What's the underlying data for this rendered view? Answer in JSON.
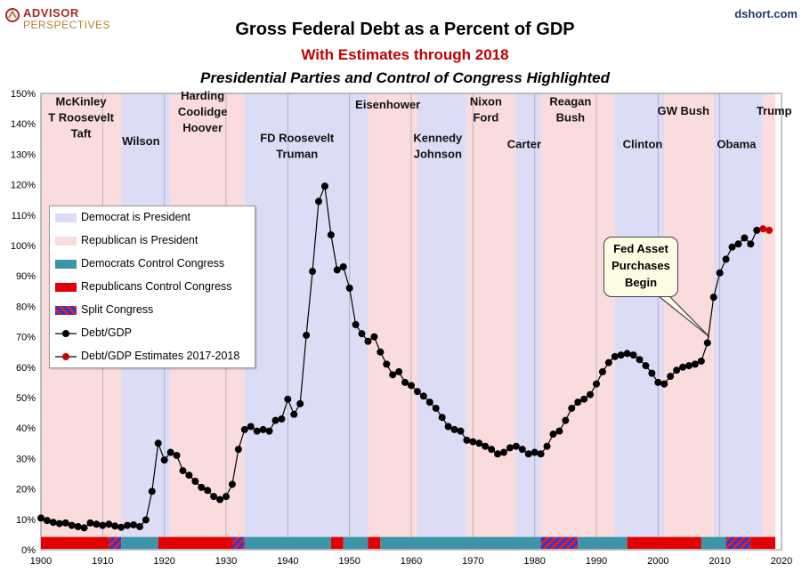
{
  "header": {
    "logo_top": "ADVISOR",
    "logo_bottom": "PERSPECTIVES",
    "source": "dshort.com"
  },
  "colors": {
    "democrat_president": "#dcdcf6",
    "republican_president": "#fadcdc",
    "democrat_congress": "#3c95a6",
    "republican_congress": "#e30000",
    "split_a": "#2b36d9",
    "split_b": "#e32020",
    "debt_line": "#000000",
    "estimate_marker": "#d10000"
  },
  "chart_data": {
    "type": "line",
    "title": "Gross Federal Debt as a Percent of GDP",
    "subtitle": "With Estimates through 2018",
    "subtitle2": "Presidential Parties and Control of Congress Highlighted",
    "xlim": [
      1900,
      2020
    ],
    "ylim": [
      0,
      150
    ],
    "xticks": [
      1900,
      1910,
      1920,
      1930,
      1940,
      1950,
      1960,
      1970,
      1980,
      1990,
      2000,
      2010,
      2020
    ],
    "yticks": [
      0,
      10,
      20,
      30,
      40,
      50,
      60,
      70,
      80,
      90,
      100,
      110,
      120,
      130,
      140,
      150
    ],
    "ytick_labels": [
      "0%",
      "10%",
      "20%",
      "30%",
      "40%",
      "50%",
      "60%",
      "70%",
      "80%",
      "90%",
      "100%",
      "110%",
      "120%",
      "130%",
      "140%",
      "150%"
    ],
    "grid": "vertical lines at decade ticks",
    "legend_position": "center-left",
    "legend": [
      {
        "label": "Democrat is President",
        "kind": "dem_pres"
      },
      {
        "label": "Republican is President",
        "kind": "rep_pres"
      },
      {
        "label": "Democrats Control Congress",
        "kind": "dem_cong"
      },
      {
        "label": "Republicans Control Congress",
        "kind": "rep_cong"
      },
      {
        "label": "Split Congress",
        "kind": "split"
      },
      {
        "label": "Debt/GDP",
        "kind": "line"
      },
      {
        "label": "Debt/GDP Estimates 2017-2018",
        "kind": "est"
      }
    ],
    "president_periods": [
      {
        "start": 1900,
        "end": 1913,
        "party": "R",
        "label": [
          "McKinley",
          "T Roosevelt",
          "Taft"
        ],
        "label_x": 1906.5,
        "label_y": 146
      },
      {
        "start": 1913,
        "end": 1921,
        "party": "D",
        "label": [
          "Wilson"
        ],
        "label_x": 1916.2,
        "label_y": 133
      },
      {
        "start": 1921,
        "end": 1933,
        "party": "R",
        "label": [
          "Harding",
          "Coolidge",
          "Hoover"
        ],
        "label_x": 1926.2,
        "label_y": 148
      },
      {
        "start": 1933,
        "end": 1953,
        "party": "D",
        "label": [
          "FD Roosevelt",
          "Truman"
        ],
        "label_x": 1941.5,
        "label_y": 134
      },
      {
        "start": 1953,
        "end": 1961,
        "party": "R",
        "label": [
          "Eisenhower"
        ],
        "label_x": 1956.2,
        "label_y": 145
      },
      {
        "start": 1961,
        "end": 1969,
        "party": "D",
        "label": [
          "Kennedy",
          "Johnson"
        ],
        "label_x": 1964.3,
        "label_y": 134
      },
      {
        "start": 1969,
        "end": 1977,
        "party": "R",
        "label": [
          "Nixon",
          "Ford"
        ],
        "label_x": 1972.1,
        "label_y": 146
      },
      {
        "start": 1977,
        "end": 1981,
        "party": "D",
        "label": [
          "Carter"
        ],
        "label_x": 1978.3,
        "label_y": 132
      },
      {
        "start": 1981,
        "end": 1993,
        "party": "R",
        "label": [
          "Reagan",
          "Bush"
        ],
        "label_x": 1985.8,
        "label_y": 146
      },
      {
        "start": 1993,
        "end": 2001,
        "party": "D",
        "label": [
          "Clinton"
        ],
        "label_x": 1997.5,
        "label_y": 132
      },
      {
        "start": 2001,
        "end": 2009,
        "party": "R",
        "label": [
          "GW Bush"
        ],
        "label_x": 2004.1,
        "label_y": 143
      },
      {
        "start": 2009,
        "end": 2017,
        "party": "D",
        "label": [
          "Obama"
        ],
        "label_x": 2012.7,
        "label_y": 132
      },
      {
        "start": 2017,
        "end": 2019,
        "party": "R",
        "label": [
          "Trump"
        ],
        "label_x": 2018.8,
        "label_y": 143
      }
    ],
    "congress_periods": [
      {
        "start": 1900,
        "end": 1911,
        "party": "R"
      },
      {
        "start": 1911,
        "end": 1913,
        "party": "S"
      },
      {
        "start": 1913,
        "end": 1919,
        "party": "D"
      },
      {
        "start": 1919,
        "end": 1931,
        "party": "R"
      },
      {
        "start": 1931,
        "end": 1933,
        "party": "S"
      },
      {
        "start": 1933,
        "end": 1947,
        "party": "D"
      },
      {
        "start": 1947,
        "end": 1949,
        "party": "R"
      },
      {
        "start": 1949,
        "end": 1953,
        "party": "D"
      },
      {
        "start": 1953,
        "end": 1955,
        "party": "R"
      },
      {
        "start": 1955,
        "end": 1981,
        "party": "D"
      },
      {
        "start": 1981,
        "end": 1987,
        "party": "S"
      },
      {
        "start": 1987,
        "end": 1995,
        "party": "D"
      },
      {
        "start": 1995,
        "end": 2007,
        "party": "R"
      },
      {
        "start": 2007,
        "end": 2011,
        "party": "D"
      },
      {
        "start": 2011,
        "end": 2015,
        "party": "S"
      },
      {
        "start": 2015,
        "end": 2019,
        "party": "R"
      }
    ],
    "series": [
      {
        "name": "Debt/GDP",
        "x": [
          1900,
          1901,
          1902,
          1903,
          1904,
          1905,
          1906,
          1907,
          1908,
          1909,
          1910,
          1911,
          1912,
          1913,
          1914,
          1915,
          1916,
          1917,
          1918,
          1919,
          1920,
          1921,
          1922,
          1923,
          1924,
          1925,
          1926,
          1927,
          1928,
          1929,
          1930,
          1931,
          1932,
          1933,
          1934,
          1935,
          1936,
          1937,
          1938,
          1939,
          1940,
          1941,
          1942,
          1943,
          1944,
          1945,
          1946,
          1947,
          1948,
          1949,
          1950,
          1951,
          1952,
          1953,
          1954,
          1955,
          1956,
          1957,
          1958,
          1959,
          1960,
          1961,
          1962,
          1963,
          1964,
          1965,
          1966,
          1967,
          1968,
          1969,
          1970,
          1971,
          1972,
          1973,
          1974,
          1975,
          1976,
          1977,
          1978,
          1979,
          1980,
          1981,
          1982,
          1983,
          1984,
          1985,
          1986,
          1987,
          1988,
          1989,
          1990,
          1991,
          1992,
          1993,
          1994,
          1995,
          1996,
          1997,
          1998,
          1999,
          2000,
          2001,
          2002,
          2003,
          2004,
          2005,
          2006,
          2007,
          2008,
          2009,
          2010,
          2011,
          2012,
          2013,
          2014,
          2015,
          2016
        ],
        "y": [
          10.4,
          9.6,
          9.0,
          8.6,
          8.8,
          8.0,
          7.6,
          7.2,
          8.8,
          8.4,
          8.0,
          8.4,
          7.8,
          7.4,
          8.0,
          8.2,
          7.6,
          9.8,
          19.2,
          35.0,
          29.5,
          32.0,
          31.0,
          26.0,
          24.5,
          22.5,
          20.5,
          19.5,
          17.5,
          16.5,
          17.5,
          21.5,
          33.0,
          39.5,
          40.5,
          39.0,
          39.5,
          39.0,
          42.5,
          43.0,
          49.5,
          44.5,
          48.0,
          70.5,
          91.5,
          114.5,
          119.5,
          103.5,
          92.0,
          93.0,
          86.0,
          74.0,
          71.0,
          68.5,
          70.0,
          65.0,
          61.0,
          57.5,
          58.5,
          55.0,
          54.0,
          52.0,
          50.5,
          48.5,
          46.5,
          43.5,
          40.5,
          39.5,
          39.0,
          36.0,
          35.5,
          35.0,
          34.0,
          33.0,
          31.5,
          32.0,
          33.5,
          34.0,
          33.0,
          31.5,
          32.0,
          31.5,
          34.0,
          38.0,
          39.0,
          42.5,
          46.5,
          48.5,
          49.5,
          51.0,
          54.5,
          58.5,
          61.5,
          63.5,
          64.0,
          64.5,
          64.0,
          62.5,
          60.5,
          58.0,
          55.0,
          54.5,
          57.0,
          59.0,
          60.0,
          60.5,
          61.0,
          62.0,
          68.0,
          83.0,
          91.0,
          95.5,
          99.5,
          100.5,
          102.5,
          100.5,
          105.0
        ]
      },
      {
        "name": "Debt/GDP Estimates 2017-2018",
        "x": [
          2017,
          2018
        ],
        "y": [
          105.5,
          105.0
        ]
      }
    ],
    "annotation": {
      "text": [
        "Fed Asset",
        "Purchases",
        "Begin"
      ],
      "points_to_x": 2008.3,
      "points_to_y": 70
    }
  }
}
